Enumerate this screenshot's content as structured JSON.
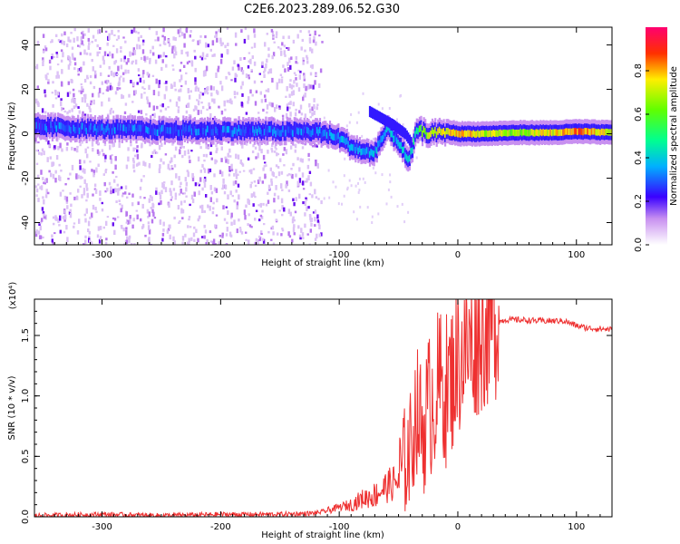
{
  "title": "C2E6.2023.289.06.52.G30",
  "chart_data": [
    {
      "type": "heatmap",
      "xlabel": "Height of straight line (km)",
      "ylabel": "Frequency (Hz)",
      "xlim": [
        -357,
        130
      ],
      "ylim": [
        -50,
        48
      ],
      "x_ticks": [
        -300,
        -200,
        -100,
        0,
        100
      ],
      "y_ticks": [
        -40,
        -20,
        0,
        20,
        40
      ],
      "colorbar": {
        "label": "Normalized spectral amplitude",
        "range": [
          0,
          1
        ],
        "ticks": [
          "0.0",
          "0.2",
          "0.4",
          "0.6",
          "0.8"
        ],
        "colormap": "rainbow"
      },
      "ridge_x": [
        -357,
        -340,
        -300,
        -250,
        -200,
        -150,
        -120,
        -100,
        -90,
        -80,
        -72,
        -60,
        -50,
        -42,
        -35,
        -25,
        -10,
        0,
        20,
        50,
        80,
        100,
        130
      ],
      "ridge_y": [
        3,
        3,
        2,
        1.5,
        1.5,
        1,
        1,
        -2,
        -6,
        -8,
        -9,
        2,
        -4,
        -13,
        2,
        0,
        1,
        0,
        0,
        0.5,
        0.5,
        1,
        0.5
      ],
      "ridge_amplitude": [
        0.25,
        0.3,
        0.3,
        0.3,
        0.3,
        0.3,
        0.3,
        0.35,
        0.35,
        0.35,
        0.35,
        0.35,
        0.35,
        0.4,
        0.5,
        0.7,
        0.75,
        0.8,
        0.7,
        0.65,
        0.75,
        0.85,
        0.7
      ],
      "noise_region_x": [
        -357,
        -115
      ]
    },
    {
      "type": "line",
      "xlabel": "Height of straight line (km)",
      "ylabel": "SNR (10 * v/v)",
      "y_multiplier": "(x10⁴)",
      "xlim": [
        -357,
        130
      ],
      "ylim": [
        0,
        1.8
      ],
      "x_ticks": [
        -300,
        -200,
        -100,
        0,
        100
      ],
      "y_ticks": [
        "0.0",
        "0.5",
        "1.0",
        "1.5"
      ],
      "series": [
        {
          "name": "SNR",
          "color": "#ee3030",
          "x": [
            -357,
            -300,
            -250,
            -200,
            -150,
            -120,
            -110,
            -100,
            -90,
            -80,
            -70,
            -60,
            -50,
            -45,
            -40,
            -35,
            -30,
            -25,
            -20,
            -15,
            -10,
            -5,
            0,
            5,
            10,
            20,
            30,
            40,
            50,
            70,
            90,
            100,
            110,
            130
          ],
          "y": [
            0.01,
            0.02,
            0.01,
            0.02,
            0.02,
            0.03,
            0.05,
            0.08,
            0.1,
            0.15,
            0.18,
            0.25,
            0.3,
            0.45,
            0.55,
            0.9,
            0.7,
            0.9,
            1.0,
            1.1,
            1.05,
            1.15,
            1.3,
            1.35,
            1.4,
            1.5,
            1.6,
            1.63,
            1.63,
            1.62,
            1.62,
            1.58,
            1.56,
            1.55
          ]
        }
      ]
    }
  ]
}
